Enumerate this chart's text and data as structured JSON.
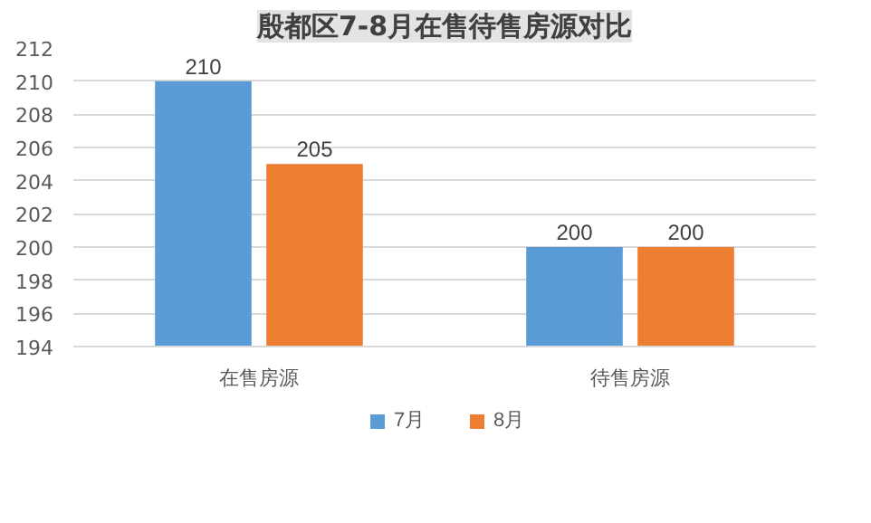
{
  "chart_data": {
    "type": "bar",
    "title": "殷都区7-8月在售待售房源对比",
    "categories": [
      "在售房源",
      "待售房源"
    ],
    "series": [
      {
        "name": "7月",
        "color": "#5b9bd5",
        "values": [
          210,
          200
        ]
      },
      {
        "name": "8月",
        "color": "#ed7d31",
        "values": [
          205,
          200
        ]
      }
    ],
    "ylim": [
      194,
      212
    ],
    "yticks": [
      194,
      196,
      198,
      200,
      202,
      204,
      206,
      208,
      210,
      212
    ],
    "grid": "y",
    "legend": "bottom",
    "data_labels": true
  }
}
